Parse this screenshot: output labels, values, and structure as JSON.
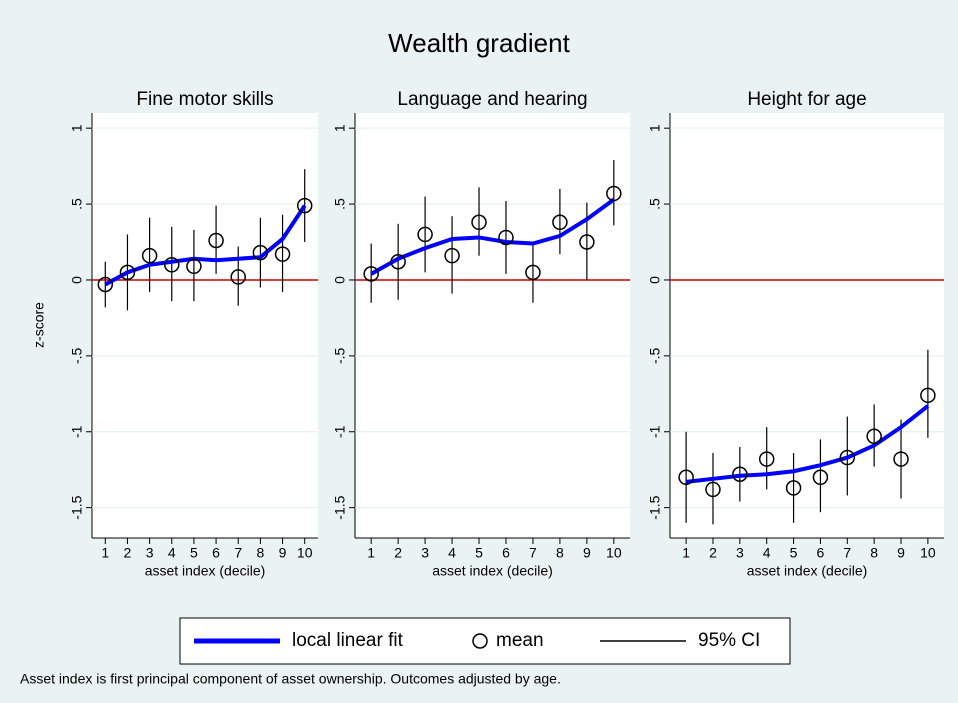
{
  "title": "Wealth gradient",
  "note": "Asset index is first principal component of asset ownership. Outcomes adjusted by age.",
  "legend": [
    {
      "name": "local linear fit",
      "color": "#0000ff"
    },
    {
      "name": "mean",
      "color": "#000000"
    },
    {
      "name": "95% CI",
      "color": "#000000"
    }
  ],
  "chart_data": [
    {
      "type": "errorbar",
      "title": "Fine motor skills",
      "xlabel": "asset index (decile)",
      "ylabel": "z-score",
      "x": [
        1,
        2,
        3,
        4,
        5,
        6,
        7,
        8,
        9,
        10
      ],
      "values": [
        -0.03,
        0.05,
        0.16,
        0.1,
        0.09,
        0.26,
        0.02,
        0.18,
        0.17,
        0.49
      ],
      "ci_low": [
        -0.18,
        -0.2,
        -0.08,
        -0.14,
        -0.14,
        0.04,
        -0.17,
        -0.05,
        -0.08,
        0.25
      ],
      "ci_high": [
        0.12,
        0.3,
        0.41,
        0.35,
        0.33,
        0.49,
        0.22,
        0.41,
        0.43,
        0.73
      ],
      "fit": [
        -0.03,
        0.05,
        0.1,
        0.12,
        0.14,
        0.13,
        0.14,
        0.15,
        0.27,
        0.49
      ],
      "xlim": [
        0.4,
        10.6
      ],
      "xticks": [
        1,
        2,
        3,
        4,
        5,
        6,
        7,
        8,
        9,
        10
      ],
      "ylim": [
        -1.7,
        1.1
      ],
      "yticks": [
        -1.5,
        -1,
        {
          "value": -0.5,
          "label": "-.5"
        },
        0,
        {
          "value": 0.5,
          "label": ".5"
        },
        1
      ],
      "grid": true,
      "reference_line": {
        "value": 0,
        "color": "#cc0000"
      }
    },
    {
      "type": "errorbar",
      "title": "Language and hearing",
      "xlabel": "asset index (decile)",
      "x": [
        1,
        2,
        3,
        4,
        5,
        6,
        7,
        8,
        9,
        10
      ],
      "values": [
        0.04,
        0.12,
        0.3,
        0.16,
        0.38,
        0.28,
        0.05,
        0.38,
        0.25,
        0.57
      ],
      "ci_low": [
        -0.15,
        -0.13,
        0.05,
        -0.09,
        0.16,
        0.04,
        -0.15,
        0.17,
        0.0,
        0.36
      ],
      "ci_high": [
        0.24,
        0.37,
        0.55,
        0.42,
        0.61,
        0.52,
        0.25,
        0.6,
        0.51,
        0.79
      ],
      "fit": [
        0.04,
        0.14,
        0.21,
        0.27,
        0.28,
        0.25,
        0.24,
        0.29,
        0.4,
        0.53
      ],
      "xlim": [
        0.4,
        10.6
      ],
      "xticks": [
        1,
        2,
        3,
        4,
        5,
        6,
        7,
        8,
        9,
        10
      ],
      "ylim": [
        -1.7,
        1.1
      ],
      "yticks": [
        -1.5,
        -1,
        {
          "value": -0.5,
          "label": "-.5"
        },
        0,
        {
          "value": 0.5,
          "label": ".5"
        },
        1
      ],
      "grid": true,
      "reference_line": {
        "value": 0,
        "color": "#cc0000"
      }
    },
    {
      "type": "errorbar",
      "title": "Height for age",
      "xlabel": "asset index (decile)",
      "x": [
        1,
        2,
        3,
        4,
        5,
        6,
        7,
        8,
        9,
        10
      ],
      "values": [
        -1.3,
        -1.38,
        -1.28,
        -1.18,
        -1.37,
        -1.3,
        -1.17,
        -1.03,
        -1.18,
        -0.76
      ],
      "ci_low": [
        -1.6,
        -1.61,
        -1.46,
        -1.38,
        -1.6,
        -1.53,
        -1.42,
        -1.23,
        -1.44,
        -1.04
      ],
      "ci_high": [
        -1.0,
        -1.14,
        -1.1,
        -0.97,
        -1.14,
        -1.05,
        -0.9,
        -0.82,
        -0.92,
        -0.46
      ],
      "fit": [
        -1.33,
        -1.31,
        -1.29,
        -1.28,
        -1.26,
        -1.22,
        -1.17,
        -1.09,
        -0.97,
        -0.83
      ],
      "xlim": [
        0.4,
        10.6
      ],
      "xticks": [
        1,
        2,
        3,
        4,
        5,
        6,
        7,
        8,
        9,
        10
      ],
      "ylim": [
        -1.7,
        1.1
      ],
      "yticks": [
        -1.5,
        -1,
        {
          "value": -0.5,
          "label": "-.5"
        },
        0,
        {
          "value": 0.5,
          "label": ".5"
        },
        1
      ],
      "grid": true,
      "reference_line": {
        "value": 0,
        "color": "#cc0000"
      }
    }
  ]
}
